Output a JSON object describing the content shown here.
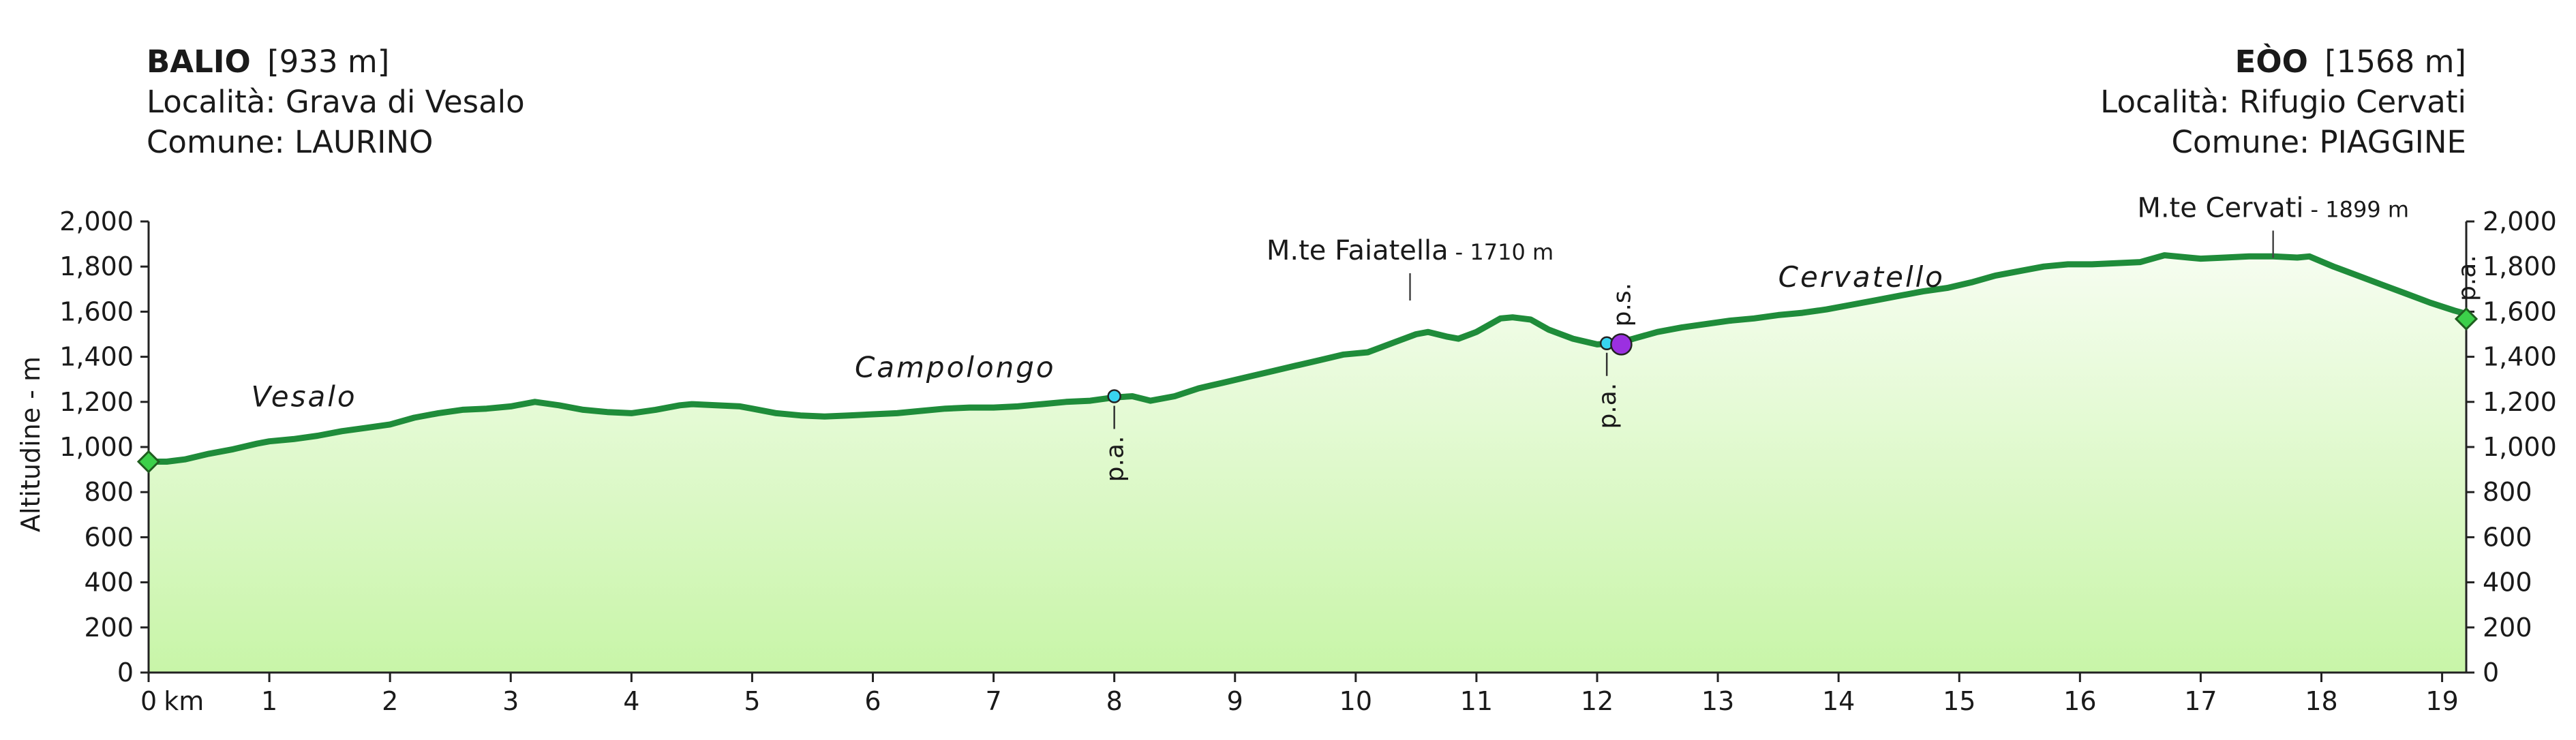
{
  "start": {
    "name": "BALIO",
    "elevation": "[933 m]",
    "locality": "Località: Grava di Vesalo",
    "comune": "Comune: LAURINO"
  },
  "end": {
    "name": "EÒO",
    "elevation": "[1568 m]",
    "locality": "Località: Rifugio Cervati",
    "comune": "Comune: PIAGGINE"
  },
  "chart_data": {
    "type": "area",
    "title": "",
    "xlabel": "",
    "ylabel": "Altitudine - m",
    "x_unit_label": "km",
    "xlim": [
      0,
      19.2
    ],
    "ylim": [
      0,
      2000
    ],
    "x_ticks": [
      0,
      1,
      2,
      3,
      4,
      5,
      6,
      7,
      8,
      9,
      10,
      11,
      12,
      13,
      14,
      15,
      16,
      17,
      18,
      19
    ],
    "y_ticks": [
      0,
      200,
      400,
      600,
      800,
      1000,
      1200,
      1400,
      1600,
      1800,
      2000
    ],
    "y_tick_labels": [
      "0",
      "200",
      "400",
      "600",
      "800",
      "1,000",
      "1,200",
      "1,400",
      "1,600",
      "1,800",
      "2,000"
    ],
    "grid": false,
    "colors": {
      "line": "#1f8c3a",
      "fill_top": "#f6fdf0",
      "fill_bottom": "#c8f5a8"
    },
    "series": [
      {
        "x": [
          0,
          0.15,
          0.3,
          0.5,
          0.7,
          0.9,
          1.0,
          1.2,
          1.4,
          1.6,
          1.8,
          2.0,
          2.2,
          2.4,
          2.6,
          2.8,
          3.0,
          3.2,
          3.4,
          3.6,
          3.8,
          4.0,
          4.2,
          4.4,
          4.5,
          4.7,
          4.9,
          5.0,
          5.2,
          5.4,
          5.6,
          5.8,
          6.0,
          6.2,
          6.4,
          6.6,
          6.8,
          7.0,
          7.2,
          7.4,
          7.6,
          7.8,
          8.0,
          8.15,
          8.3,
          8.5,
          8.7,
          8.9,
          9.1,
          9.3,
          9.5,
          9.7,
          9.9,
          10.1,
          10.3,
          10.5,
          10.6,
          10.75,
          10.85,
          11.0,
          11.2,
          11.3,
          11.45,
          11.6,
          11.8,
          12.0,
          12.15,
          12.3,
          12.5,
          12.7,
          12.9,
          13.1,
          13.3,
          13.5,
          13.7,
          13.9,
          14.1,
          14.3,
          14.5,
          14.7,
          14.9,
          15.1,
          15.3,
          15.5,
          15.7,
          15.9,
          16.1,
          16.3,
          16.5,
          16.7,
          16.9,
          17.0,
          17.2,
          17.4,
          17.6,
          17.8,
          17.9,
          18.1,
          18.3,
          18.5,
          18.7,
          18.9,
          19.1,
          19.2
        ],
        "y": [
          935,
          935,
          945,
          970,
          990,
          1015,
          1025,
          1035,
          1050,
          1070,
          1085,
          1100,
          1130,
          1150,
          1165,
          1170,
          1180,
          1200,
          1185,
          1165,
          1155,
          1150,
          1165,
          1185,
          1190,
          1185,
          1180,
          1170,
          1150,
          1140,
          1135,
          1140,
          1145,
          1150,
          1160,
          1170,
          1175,
          1175,
          1180,
          1190,
          1200,
          1205,
          1220,
          1225,
          1205,
          1225,
          1260,
          1285,
          1310,
          1335,
          1360,
          1385,
          1410,
          1420,
          1460,
          1500,
          1510,
          1490,
          1480,
          1510,
          1570,
          1575,
          1565,
          1520,
          1480,
          1455,
          1460,
          1480,
          1510,
          1530,
          1545,
          1560,
          1570,
          1585,
          1595,
          1610,
          1630,
          1650,
          1670,
          1690,
          1705,
          1730,
          1760,
          1780,
          1800,
          1810,
          1810,
          1815,
          1820,
          1850,
          1840,
          1835,
          1840,
          1845,
          1845,
          1840,
          1845,
          1800,
          1760,
          1720,
          1680,
          1640,
          1605,
          1590
        ]
      }
    ],
    "place_labels": [
      {
        "text": "Vesalo",
        "x": 0.85,
        "y": 1180
      },
      {
        "text": "Campolongo",
        "x": 5.85,
        "y": 1310
      },
      {
        "text": "Cervatello",
        "x": 13.5,
        "y": 1710
      }
    ],
    "peaks": [
      {
        "name": "M.te Faiatella",
        "elev_label": "- 1710 m",
        "x": 10.45,
        "y": 1710
      },
      {
        "name": "M.te Cervati",
        "elev_label": "- 1899 m",
        "x": 17.6,
        "y": 1899
      }
    ],
    "waypoints": [
      {
        "label": "p.a.",
        "x": 8.0,
        "y": 1225,
        "color": "#38d4f0",
        "shape": "circle",
        "small": true,
        "label_pos": "below"
      },
      {
        "label": "p.a.",
        "x": 12.08,
        "y": 1460,
        "color": "#38d4f0",
        "shape": "circle",
        "small": true,
        "label_pos": "below"
      },
      {
        "label": "p.s.",
        "x": 12.2,
        "y": 1455,
        "color": "#9b30e0",
        "shape": "circle",
        "small": false,
        "label_pos": "above"
      },
      {
        "label": "",
        "x": 0,
        "y": 935,
        "color": "#3cd04a",
        "shape": "diamond",
        "small": false,
        "label_pos": "none"
      },
      {
        "label": "p.a.",
        "x": 19.2,
        "y": 1568,
        "color": "#3cd04a",
        "shape": "diamond",
        "small": false,
        "label_pos": "above"
      }
    ]
  }
}
